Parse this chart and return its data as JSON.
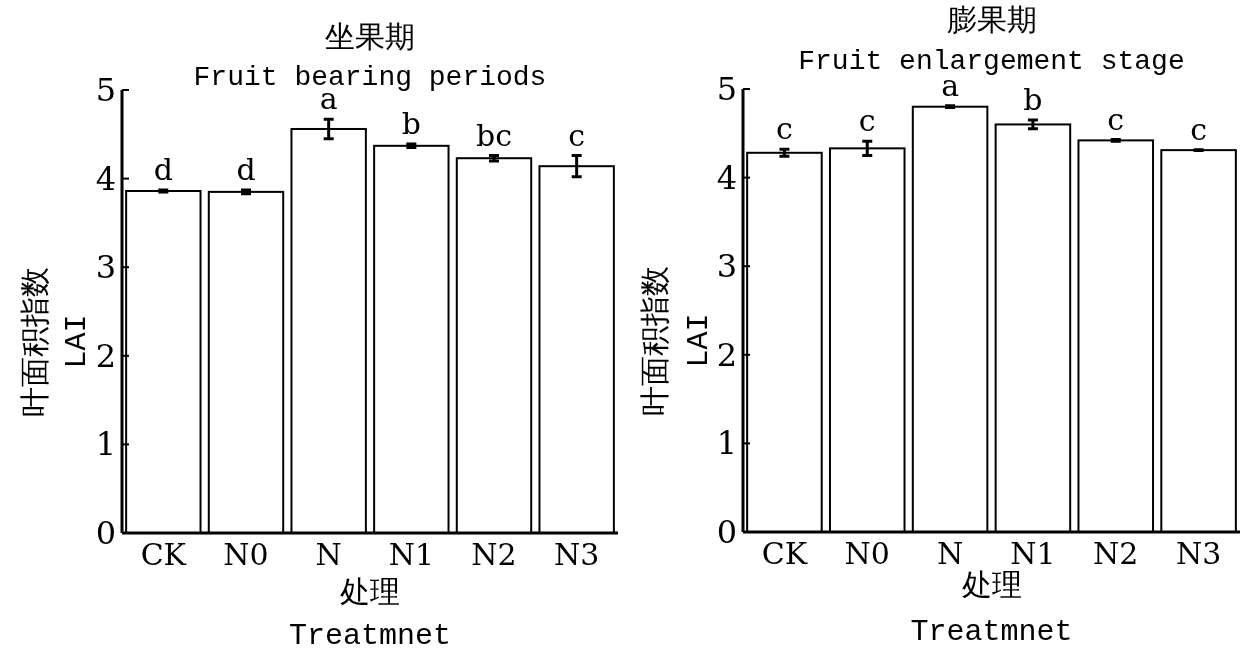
{
  "chart_data": [
    {
      "type": "bar",
      "title": "坐果期",
      "subtitle": "Fruit bearing periods",
      "xlabel": "处理\nTreatmnet",
      "ylabel": "叶面积指数\nLAI",
      "categories": [
        "CK",
        "N0",
        "N",
        "N1",
        "N2",
        "N3"
      ],
      "values": [
        3.86,
        3.85,
        4.56,
        4.37,
        4.23,
        4.14
      ],
      "errors": [
        0.01,
        0.02,
        0.11,
        0.02,
        0.03,
        0.12
      ],
      "color": "#ffffff",
      "ylim": [
        0,
        5
      ],
      "yticks": [
        0,
        1,
        2,
        3,
        4,
        5
      ],
      "annotations": [
        {
          "text": "d",
          "x": "CK",
          "y": 3.87
        },
        {
          "text": "d",
          "x": "N0",
          "y": 3.87
        },
        {
          "text": "a",
          "x": "N",
          "y": 4.67
        },
        {
          "text": "b",
          "x": "N1",
          "y": 4.39
        },
        {
          "text": "bc",
          "x": "N2",
          "y": 4.26
        },
        {
          "text": "c",
          "x": "N3",
          "y": 4.26
        }
      ]
    },
    {
      "type": "bar",
      "title": "膨果期",
      "subtitle": "Fruit enlargement stage",
      "xlabel": "处理\nTreatmnet",
      "ylabel": "叶面积指数\nLAI",
      "categories": [
        "CK",
        "N0",
        "N",
        "N1",
        "N2",
        "N3"
      ],
      "values": [
        4.28,
        4.33,
        4.8,
        4.6,
        4.42,
        4.31
      ],
      "errors": [
        0.04,
        0.08,
        0.01,
        0.05,
        0.01,
        0.005
      ],
      "color": "#ffffff",
      "ylim": [
        0,
        5
      ],
      "yticks": [
        0,
        1,
        2,
        3,
        4,
        5
      ],
      "annotations": [
        {
          "text": "c",
          "x": "CK",
          "y": 4.32
        },
        {
          "text": "c",
          "x": "N0",
          "y": 4.41
        },
        {
          "text": "a",
          "x": "N",
          "y": 4.81
        },
        {
          "text": "b",
          "x": "N1",
          "y": 4.65
        },
        {
          "text": "c",
          "x": "N2",
          "y": 4.43
        },
        {
          "text": "c",
          "x": "N3",
          "y": 4.315
        }
      ]
    }
  ]
}
